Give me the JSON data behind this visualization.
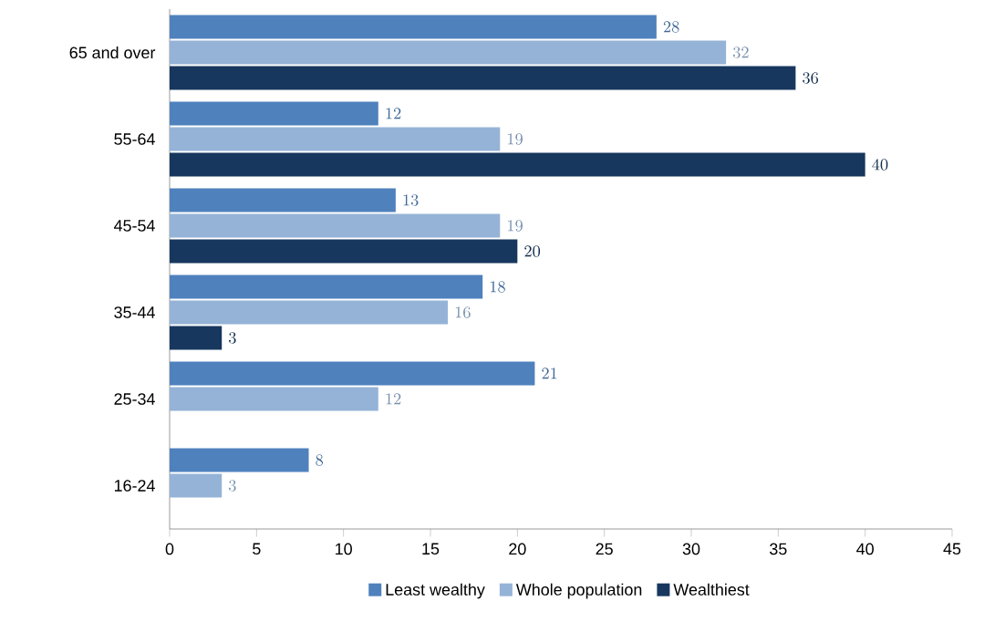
{
  "chart_data": {
    "type": "bar",
    "orientation": "horizontal",
    "categories": [
      "65 and over",
      "55-64",
      "45-54",
      "35-44",
      "25-34",
      "16-24"
    ],
    "series": [
      {
        "name": "Least wealthy",
        "color": "#4f81bd",
        "values": [
          28,
          12,
          13,
          18,
          21,
          8
        ]
      },
      {
        "name": "Whole population",
        "color": "#95b3d7",
        "values": [
          32,
          19,
          19,
          16,
          12,
          3
        ]
      },
      {
        "name": "Wealthiest",
        "color": "#17375e",
        "values": [
          36,
          40,
          20,
          3,
          null,
          null
        ]
      }
    ],
    "xlim": [
      0,
      45
    ],
    "xticks": [
      0,
      5,
      10,
      15,
      20,
      25,
      30,
      35,
      40,
      45
    ],
    "data_labels": true,
    "grid": false,
    "legend": "bottom"
  }
}
